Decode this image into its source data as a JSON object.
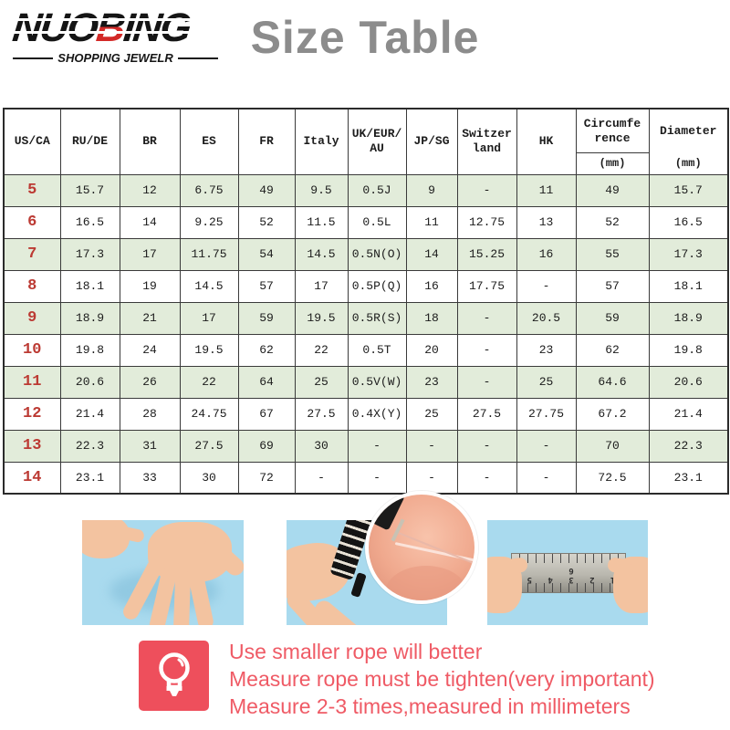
{
  "brand": {
    "name_parts": {
      "left": "NUO",
      "accent": "B",
      "right": "ING"
    },
    "tagline": "SHOPPING JEWELR"
  },
  "page_title": "Size Table",
  "table": {
    "headers": [
      "US/CA",
      "RU/DE",
      "BR",
      "ES",
      "FR",
      "Italy",
      "UK/EUR/ AU",
      "JP/SG",
      "Switzer land",
      "HK",
      "Circumfe rence",
      "Diameter"
    ],
    "unit_label": "(mm)",
    "rows": [
      [
        "5",
        "15.7",
        "12",
        "6.75",
        "49",
        "9.5",
        "0.5J",
        "9",
        "-",
        "11",
        "49",
        "15.7"
      ],
      [
        "6",
        "16.5",
        "14",
        "9.25",
        "52",
        "11.5",
        "0.5L",
        "11",
        "12.75",
        "13",
        "52",
        "16.5"
      ],
      [
        "7",
        "17.3",
        "17",
        "11.75",
        "54",
        "14.5",
        "0.5N(O)",
        "14",
        "15.25",
        "16",
        "55",
        "17.3"
      ],
      [
        "8",
        "18.1",
        "19",
        "14.5",
        "57",
        "17",
        "0.5P(Q)",
        "16",
        "17.75",
        "-",
        "57",
        "18.1"
      ],
      [
        "9",
        "18.9",
        "21",
        "17",
        "59",
        "19.5",
        "0.5R(S)",
        "18",
        "-",
        "20.5",
        "59",
        "18.9"
      ],
      [
        "10",
        "19.8",
        "24",
        "19.5",
        "62",
        "22",
        "0.5T",
        "20",
        "-",
        "23",
        "62",
        "19.8"
      ],
      [
        "11",
        "20.6",
        "26",
        "22",
        "64",
        "25",
        "0.5V(W)",
        "23",
        "-",
        "25",
        "64.6",
        "20.6"
      ],
      [
        "12",
        "21.4",
        "28",
        "24.75",
        "67",
        "27.5",
        "0.4X(Y)",
        "25",
        "27.5",
        "27.75",
        "67.2",
        "21.4"
      ],
      [
        "13",
        "22.3",
        "31",
        "27.5",
        "69",
        "30",
        "-",
        "-",
        "-",
        "-",
        "70",
        "22.3"
      ],
      [
        "14",
        "23.1",
        "33",
        "30",
        "72",
        "-",
        "-",
        "-",
        "-",
        "-",
        "72.5",
        "23.1"
      ]
    ]
  },
  "photos": {
    "ruler_numbers": "1 2 3 4 5 6"
  },
  "tips": {
    "icon": "light-bulb-icon",
    "lines": [
      "Use smaller rope will better",
      "Measure rope must be tighten(very important)",
      "Measure 2-3 times,measured in millimeters"
    ]
  },
  "colors": {
    "accent_red_sizes": "#bc3a33",
    "logo_red": "#d32927",
    "row_green": "#e2ecda",
    "tip_pink": "#ef5a65",
    "tip_icon_bg": "#ee4f5c",
    "title_gray": "#8c8c8c",
    "photo_blue": "#a9daee",
    "border_dark": "#3a3a3a"
  }
}
